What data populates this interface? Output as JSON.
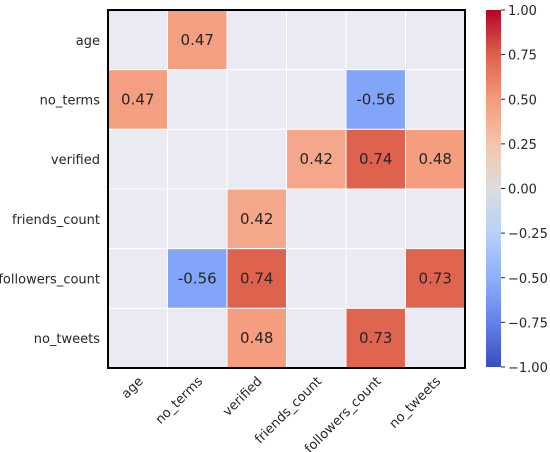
{
  "chart_data": {
    "type": "heatmap",
    "title": "",
    "xlabel": "",
    "ylabel": "",
    "x_categories": [
      "age",
      "no_terms",
      "verified",
      "friends_count",
      "followers_count",
      "no_tweets"
    ],
    "y_categories": [
      "age",
      "no_terms",
      "verified",
      "friends_count",
      "followers_count",
      "no_tweets"
    ],
    "values": [
      [
        null,
        0.47,
        null,
        null,
        null,
        null
      ],
      [
        0.47,
        null,
        null,
        null,
        -0.56,
        null
      ],
      [
        null,
        null,
        null,
        0.42,
        0.74,
        0.48
      ],
      [
        null,
        null,
        0.42,
        null,
        null,
        null
      ],
      [
        null,
        -0.56,
        0.74,
        null,
        null,
        0.73
      ],
      [
        null,
        null,
        0.48,
        null,
        0.73,
        null
      ]
    ],
    "value_labels": [
      [
        "",
        "0.47",
        "",
        "",
        "",
        ""
      ],
      [
        "0.47",
        "",
        "",
        "",
        "-0.56",
        ""
      ],
      [
        "",
        "",
        "",
        "0.42",
        "0.74",
        "0.48"
      ],
      [
        "",
        "",
        "0.42",
        "",
        "",
        ""
      ],
      [
        "",
        "-0.56",
        "0.74",
        "",
        "",
        "0.73"
      ],
      [
        "",
        "",
        "0.48",
        "",
        "0.73",
        ""
      ]
    ],
    "colormap": "coolwarm",
    "vmin": -1.0,
    "vmax": 1.0,
    "colorbar_ticks": [
      "1.00",
      "0.75",
      "0.50",
      "0.25",
      "0.00",
      "−0.25",
      "−0.50",
      "−0.75",
      "−1.00"
    ],
    "colorbar_tick_values": [
      1.0,
      0.75,
      0.5,
      0.25,
      0.0,
      -0.25,
      -0.5,
      -0.75,
      -1.0
    ],
    "background_color": "#eaeaf2",
    "frame_color": "#000000",
    "grid": true,
    "legend": "colorbar-right"
  }
}
